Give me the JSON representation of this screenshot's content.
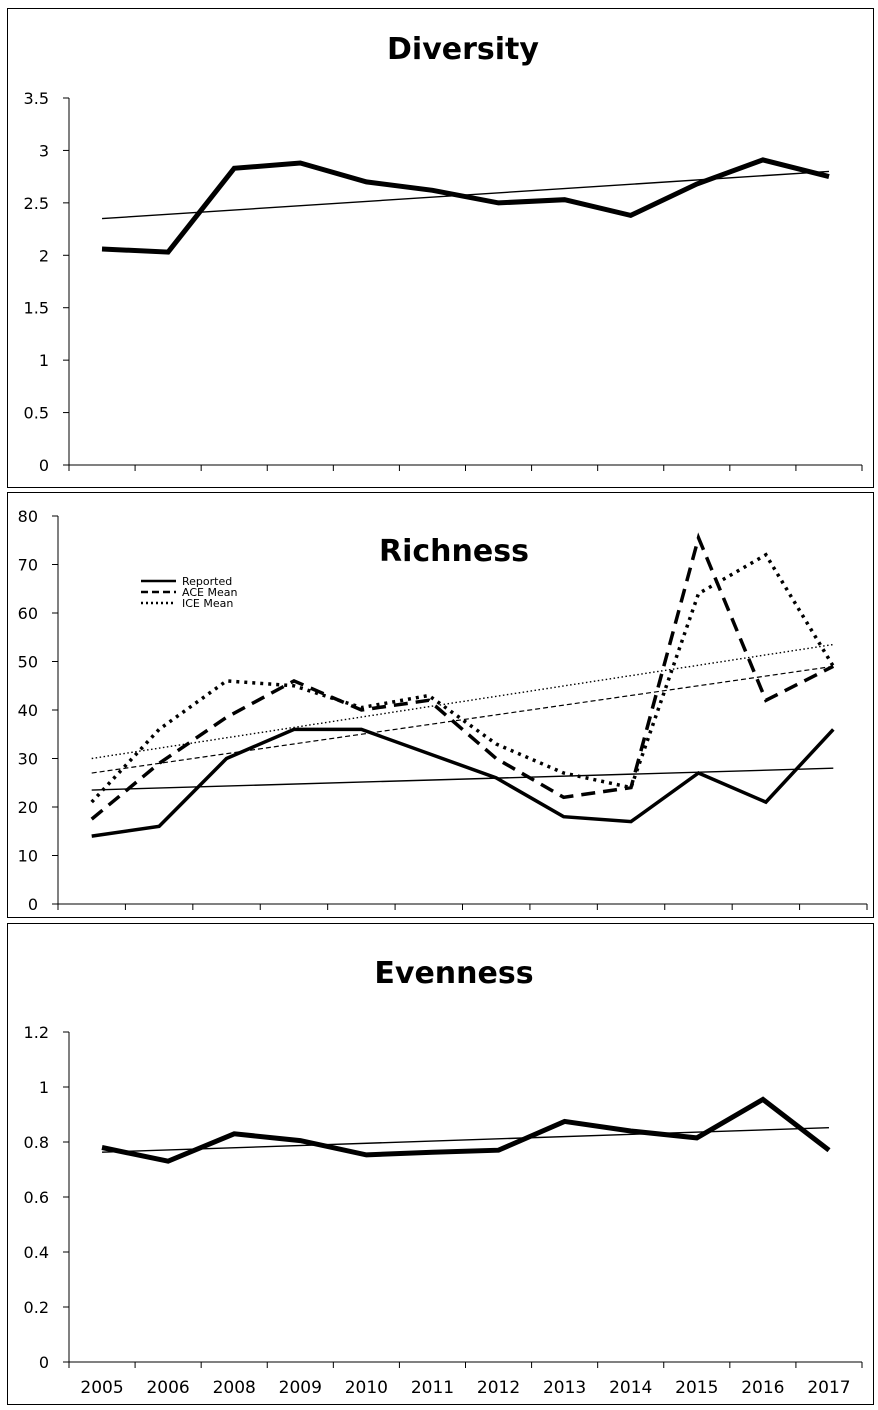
{
  "chart_data": [
    {
      "type": "line",
      "title": "Diversity",
      "categories": [
        "2005",
        "2006",
        "2008",
        "2009",
        "2010",
        "2011",
        "2012",
        "2013",
        "2014",
        "2015",
        "2016",
        "2017"
      ],
      "ylim": [
        0,
        3.5
      ],
      "yticks": [
        "0",
        "0.5",
        "1",
        "1.5",
        "2",
        "2.5",
        "3",
        "3.5"
      ],
      "series": [
        {
          "values": [
            2.06,
            2.03,
            2.83,
            2.88,
            2.7,
            2.62,
            2.5,
            2.53,
            2.38,
            2.68,
            2.91,
            2.75
          ],
          "style": "solid-thick"
        }
      ],
      "trendlines": [
        {
          "start": 2.35,
          "end": 2.8,
          "style": "solid-thin"
        }
      ],
      "xlabels_shown": false
    },
    {
      "type": "line",
      "title": "Richness",
      "categories": [
        "2005",
        "2006",
        "2008",
        "2009",
        "2010",
        "2011",
        "2012",
        "2013",
        "2014",
        "2015",
        "2016",
        "2017"
      ],
      "ylim": [
        0,
        80
      ],
      "yticks": [
        "0",
        "10",
        "20",
        "30",
        "40",
        "50",
        "60",
        "70",
        "80"
      ],
      "series": [
        {
          "name": "Reported",
          "values": [
            14,
            16,
            30,
            36,
            36,
            31,
            26,
            18,
            17,
            27,
            21,
            36
          ],
          "style": "solid"
        },
        {
          "name": "ACE Mean",
          "values": [
            17.5,
            29,
            38.5,
            46,
            40,
            42,
            30,
            22,
            24,
            75.5,
            42,
            49
          ],
          "style": "dashed"
        },
        {
          "name": "ICE Mean",
          "values": [
            21,
            36,
            46,
            45,
            40.5,
            43,
            33,
            27,
            24,
            64,
            72,
            49
          ],
          "style": "dotted"
        }
      ],
      "trendlines": [
        {
          "start": 23.5,
          "end": 28,
          "style": "solid-thin"
        },
        {
          "start": 27,
          "end": 49,
          "style": "dashed-thin"
        },
        {
          "start": 30,
          "end": 53.5,
          "style": "dotted-thin"
        }
      ],
      "legend": "top-left",
      "xlabels_shown": false
    },
    {
      "type": "line",
      "title": "Evenness",
      "categories": [
        "2005",
        "2006",
        "2008",
        "2009",
        "2010",
        "2011",
        "2012",
        "2013",
        "2014",
        "2015",
        "2016",
        "2017"
      ],
      "ylim": [
        0,
        1.2
      ],
      "yticks": [
        "0",
        "0.2",
        "0.4",
        "0.6",
        "0.8",
        "1",
        "1.2"
      ],
      "series": [
        {
          "values": [
            0.78,
            0.73,
            0.83,
            0.805,
            0.753,
            0.763,
            0.77,
            0.875,
            0.84,
            0.815,
            0.955,
            0.77
          ],
          "style": "solid-thick"
        }
      ],
      "trendlines": [
        {
          "start": 0.763,
          "end": 0.852,
          "style": "solid-thin"
        }
      ],
      "xlabels_shown": true
    }
  ]
}
